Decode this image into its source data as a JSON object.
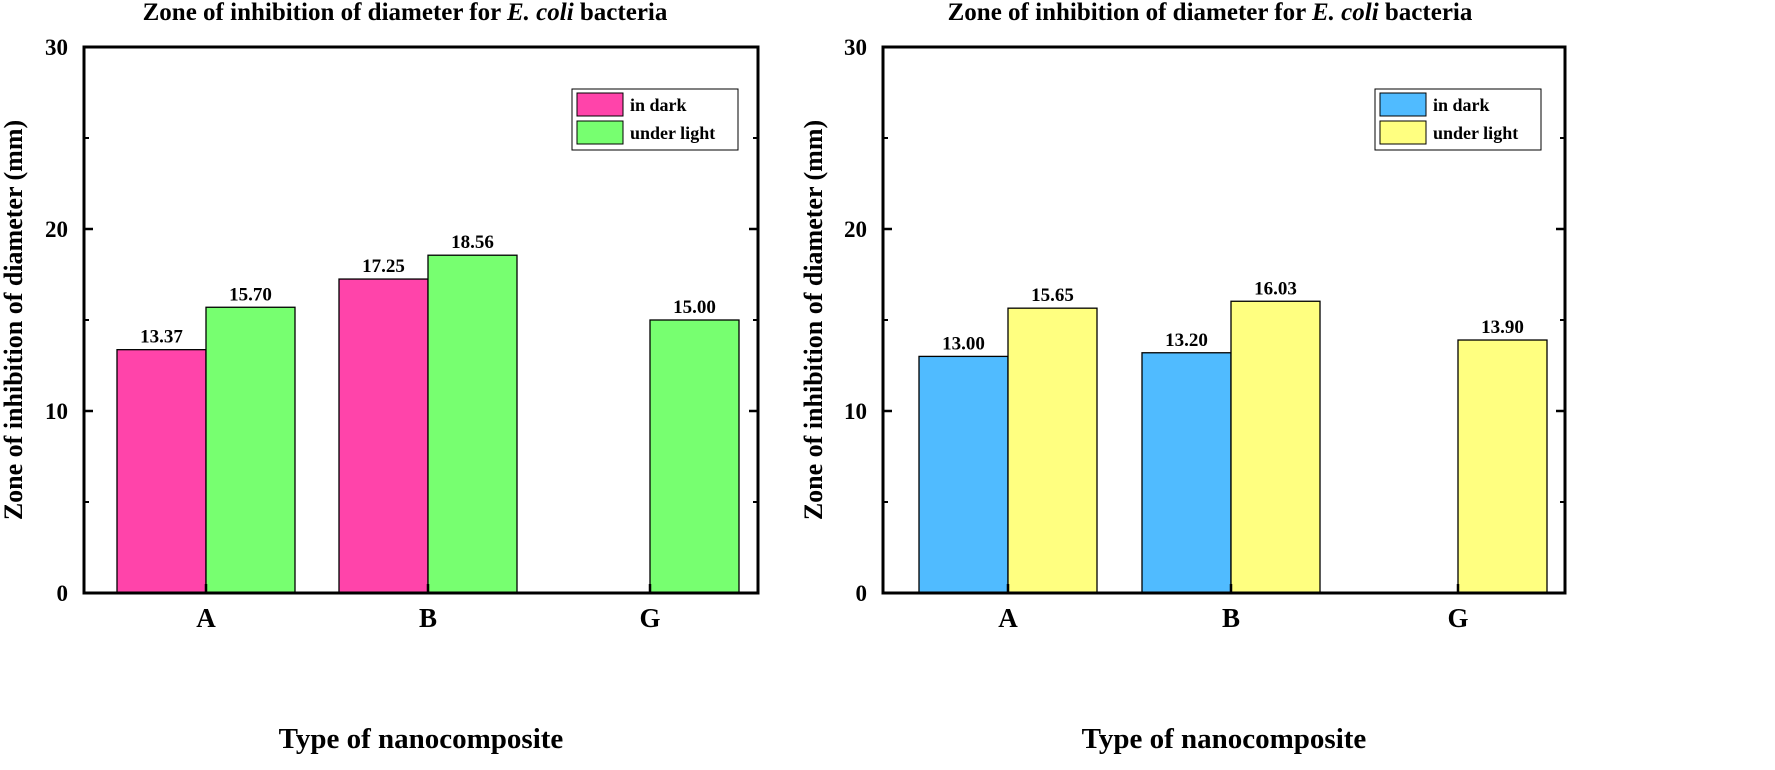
{
  "chart_data": [
    {
      "type": "bar",
      "title": {
        "prefix": "Zone of inhibition of diameter for ",
        "italic": "E. coli",
        "suffix": " bacteria"
      },
      "xlabel": "Type of nanocomposite",
      "ylabel": "Zone of inhibition of diameter (mm)",
      "categories": [
        "A",
        "B",
        "G"
      ],
      "ylim": [
        0,
        30
      ],
      "yticks": [
        "0",
        "10",
        "20",
        "30"
      ],
      "grid": false,
      "legend_position": "top-right",
      "series": [
        {
          "name": "in dark",
          "color": "#ff44aa",
          "values": [
            13.37,
            17.25,
            null
          ],
          "labels": [
            "13.37",
            "17.25",
            ""
          ]
        },
        {
          "name": "under light",
          "color": "#77ff70",
          "values": [
            15.7,
            18.56,
            15.0
          ],
          "labels": [
            "15.70",
            "18.56",
            "15.00"
          ]
        }
      ]
    },
    {
      "type": "bar",
      "title": {
        "prefix": "Zone of inhibition of diameter for ",
        "italic": "E. coli",
        "suffix": " bacteria"
      },
      "xlabel": "Type of nanocomposite",
      "ylabel": "Zone of inhibition of diameter (mm)",
      "categories": [
        "A",
        "B",
        "G"
      ],
      "ylim": [
        0,
        30
      ],
      "yticks": [
        "0",
        "10",
        "20",
        "30"
      ],
      "grid": false,
      "legend_position": "top-right",
      "series": [
        {
          "name": "in dark",
          "color": "#50bbff",
          "values": [
            13.0,
            13.2,
            null
          ],
          "labels": [
            "13.00",
            "13.20",
            ""
          ]
        },
        {
          "name": "under light",
          "color": "#ffff80",
          "values": [
            15.65,
            16.03,
            13.9
          ],
          "labels": [
            "15.65",
            "16.03",
            "13.90"
          ]
        }
      ]
    }
  ]
}
